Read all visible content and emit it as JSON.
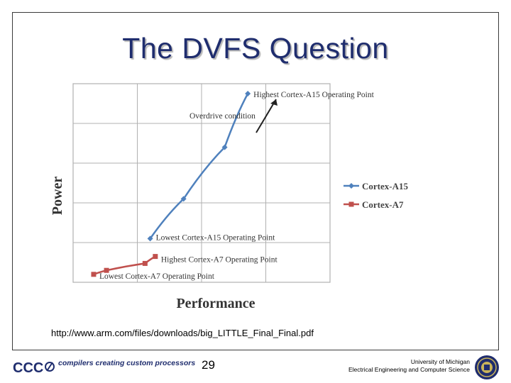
{
  "slide": {
    "title": "The DVFS Question",
    "source_url": "http://www.arm.com/files/downloads/big_LITTLE_Final_Final.pdf",
    "page_number": "29"
  },
  "footer": {
    "logo_text": "CCC",
    "tagline": "compilers creating custom processors",
    "university_line1": "University of Michigan",
    "university_line2": "Electrical Engineering and Computer Science"
  },
  "chart_data": {
    "type": "line",
    "xlabel": "Performance",
    "ylabel": "Power",
    "xlim": [
      0,
      10
    ],
    "ylim": [
      0,
      10
    ],
    "grid": true,
    "legend_position": "right",
    "series": [
      {
        "name": "Cortex-A15",
        "color": "#4f81bd",
        "marker": "diamond",
        "x": [
          3.0,
          4.3,
          5.9,
          6.8
        ],
        "y": [
          2.2,
          4.2,
          6.8,
          9.5
        ]
      },
      {
        "name": "Cortex-A7",
        "color": "#c0504d",
        "marker": "square",
        "x": [
          0.8,
          1.3,
          2.8,
          3.2
        ],
        "y": [
          0.4,
          0.6,
          0.95,
          1.3
        ]
      }
    ],
    "annotations": [
      "Highest Cortex-A15 Operating Point",
      "Overdrive condition",
      "Lowest Cortex-A15 Operating Point",
      "Highest Cortex-A7 Operating Point",
      "Lowest Cortex-A7 Operating Point"
    ]
  }
}
